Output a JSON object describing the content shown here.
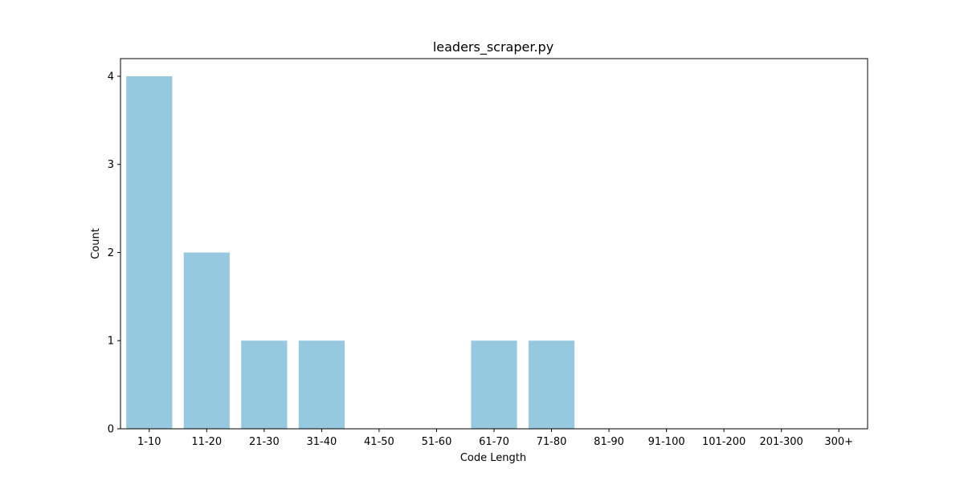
{
  "chart_data": {
    "type": "bar",
    "title": "leaders_scraper.py",
    "xlabel": "Code Length",
    "ylabel": "Count",
    "categories": [
      "1-10",
      "11-20",
      "21-30",
      "31-40",
      "41-50",
      "51-60",
      "61-70",
      "71-80",
      "81-90",
      "91-100",
      "101-200",
      "201-300",
      "300+"
    ],
    "values": [
      4,
      2,
      1,
      1,
      0,
      0,
      1,
      1,
      0,
      0,
      0,
      0,
      0
    ],
    "ylim": [
      0,
      4.2
    ],
    "yticks": [
      0,
      1,
      2,
      3,
      4
    ],
    "grid": false,
    "legend": false,
    "bar_color": "#96c9df"
  }
}
